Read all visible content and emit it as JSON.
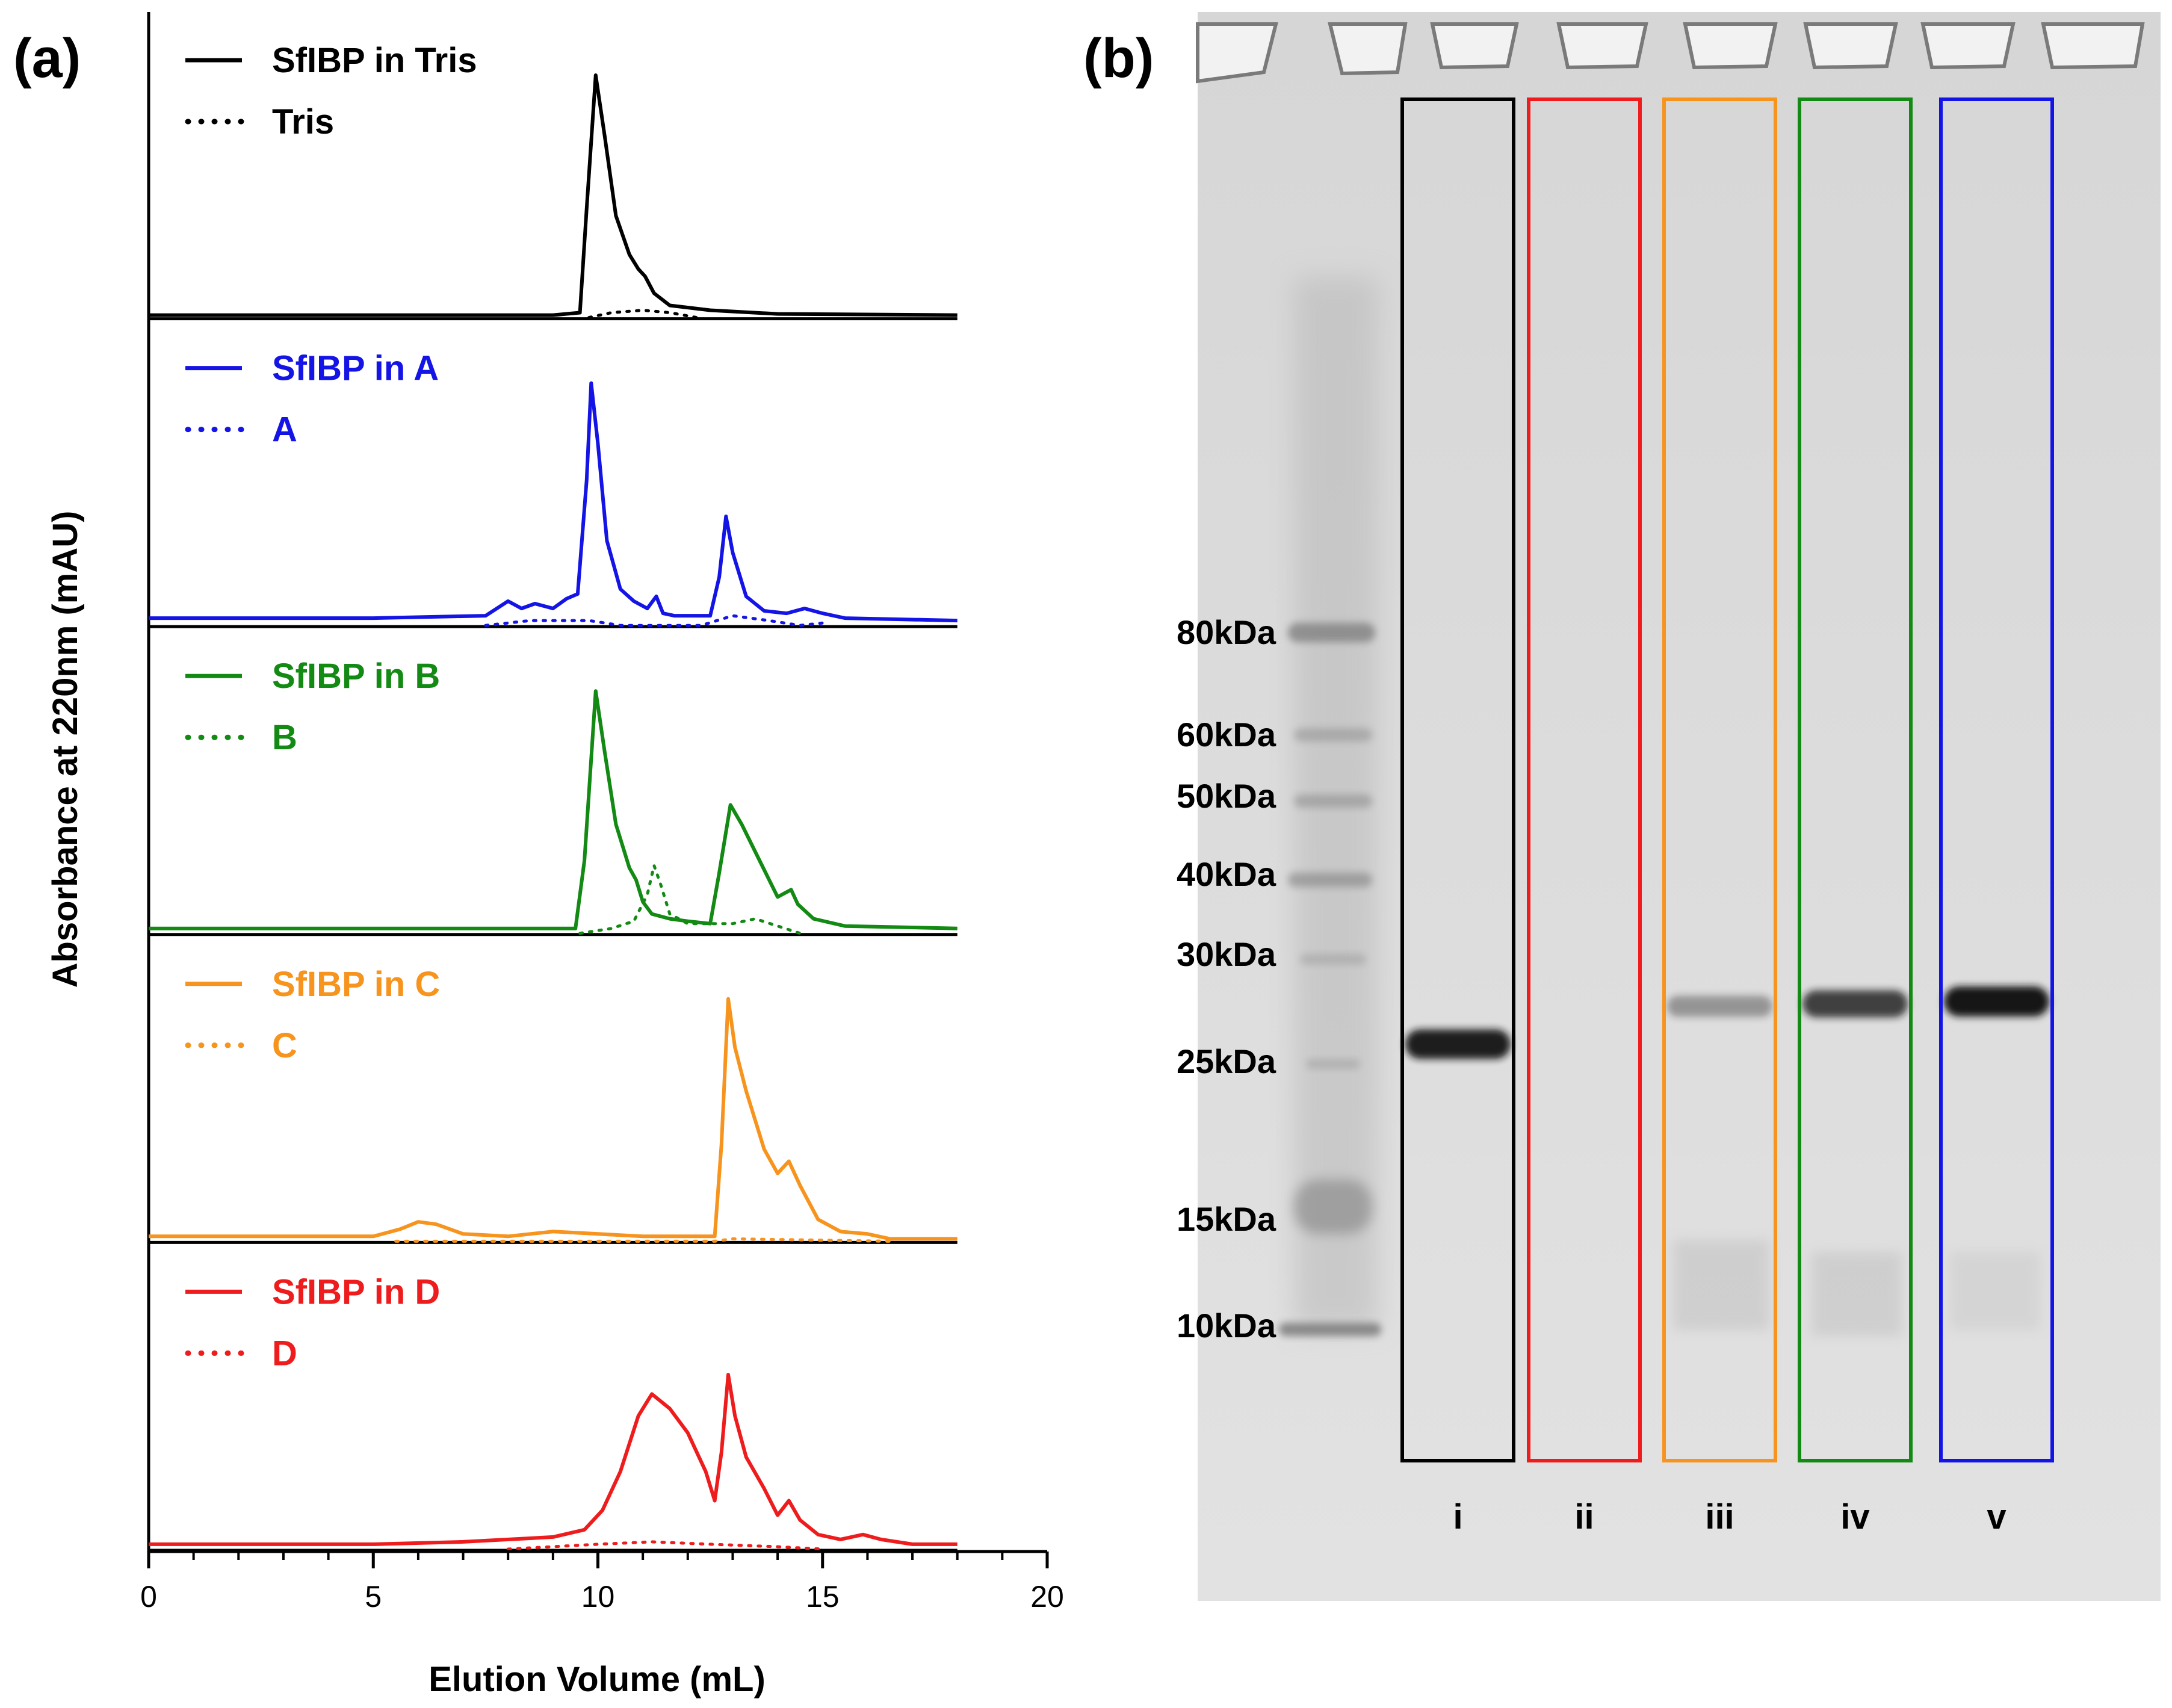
{
  "panels": {
    "a_label": "(a)",
    "b_label": "(b)"
  },
  "colors": {
    "tris": "#000000",
    "a": "#1414e6",
    "b": "#138a13",
    "c": "#f7941d",
    "d": "#ee1c1c",
    "gel_bg": "#dcdcdc"
  },
  "chart_data": {
    "type": "line",
    "xlabel": "Elution Volume (mL)",
    "ylabel": "Absorbance at 220nm (mAU)",
    "xlim": [
      0,
      20
    ],
    "xticks": [
      "0",
      "5",
      "10",
      "15",
      "20"
    ],
    "subplots": [
      {
        "key": "tris",
        "color": "#000000",
        "legend": [
          "SfIBP in Tris",
          "Tris"
        ],
        "ymax": 1.0,
        "solid": [
          [
            0,
            0.01
          ],
          [
            9.0,
            0.01
          ],
          [
            9.6,
            0.02
          ],
          [
            9.75,
            0.45
          ],
          [
            9.95,
            1.0
          ],
          [
            10.15,
            0.75
          ],
          [
            10.4,
            0.42
          ],
          [
            10.7,
            0.26
          ],
          [
            10.9,
            0.2
          ],
          [
            11.05,
            0.17
          ],
          [
            11.25,
            0.1
          ],
          [
            11.6,
            0.05
          ],
          [
            12.5,
            0.03
          ],
          [
            14,
            0.015
          ],
          [
            18,
            0.01
          ]
        ],
        "dotted": [
          [
            9.8,
            0.0
          ],
          [
            10.3,
            0.02
          ],
          [
            11.0,
            0.03
          ],
          [
            11.6,
            0.02
          ],
          [
            12.2,
            0.0
          ]
        ]
      },
      {
        "key": "a",
        "color": "#1414e6",
        "legend": [
          "SfIBP in A",
          "A"
        ],
        "ymax": 1.0,
        "solid": [
          [
            0,
            0.03
          ],
          [
            5,
            0.03
          ],
          [
            7.5,
            0.04
          ],
          [
            8.0,
            0.1
          ],
          [
            8.3,
            0.07
          ],
          [
            8.6,
            0.09
          ],
          [
            9.0,
            0.07
          ],
          [
            9.3,
            0.11
          ],
          [
            9.55,
            0.13
          ],
          [
            9.75,
            0.6
          ],
          [
            9.85,
            1.0
          ],
          [
            10.0,
            0.75
          ],
          [
            10.2,
            0.35
          ],
          [
            10.5,
            0.15
          ],
          [
            10.8,
            0.1
          ],
          [
            11.1,
            0.07
          ],
          [
            11.3,
            0.12
          ],
          [
            11.45,
            0.05
          ],
          [
            11.7,
            0.04
          ],
          [
            12.5,
            0.04
          ],
          [
            12.7,
            0.2
          ],
          [
            12.85,
            0.45
          ],
          [
            13.0,
            0.3
          ],
          [
            13.3,
            0.12
          ],
          [
            13.7,
            0.06
          ],
          [
            14.2,
            0.05
          ],
          [
            14.6,
            0.07
          ],
          [
            15.0,
            0.05
          ],
          [
            15.5,
            0.03
          ],
          [
            18,
            0.02
          ]
        ],
        "dotted": [
          [
            7.5,
            0.0
          ],
          [
            8.5,
            0.02
          ],
          [
            9.8,
            0.02
          ],
          [
            10.5,
            0.0
          ],
          [
            11.2,
            0.0
          ],
          [
            12.3,
            0.0
          ],
          [
            13.0,
            0.04
          ],
          [
            13.8,
            0.02
          ],
          [
            14.5,
            0.0
          ],
          [
            15.0,
            0.01
          ]
        ]
      },
      {
        "key": "b",
        "color": "#138a13",
        "legend": [
          "SfIBP in B",
          "B"
        ],
        "ymax": 1.0,
        "solid": [
          [
            0,
            0.02
          ],
          [
            2.5,
            0.02
          ],
          [
            9.5,
            0.02
          ],
          [
            9.7,
            0.3
          ],
          [
            9.95,
            1.0
          ],
          [
            10.15,
            0.75
          ],
          [
            10.4,
            0.45
          ],
          [
            10.7,
            0.27
          ],
          [
            10.85,
            0.22
          ],
          [
            11.0,
            0.13
          ],
          [
            11.2,
            0.08
          ],
          [
            11.6,
            0.06
          ],
          [
            12.0,
            0.05
          ],
          [
            12.5,
            0.04
          ],
          [
            12.7,
            0.25
          ],
          [
            12.95,
            0.53
          ],
          [
            13.2,
            0.45
          ],
          [
            13.6,
            0.3
          ],
          [
            14.0,
            0.15
          ],
          [
            14.3,
            0.18
          ],
          [
            14.45,
            0.12
          ],
          [
            14.8,
            0.06
          ],
          [
            15.5,
            0.03
          ],
          [
            18,
            0.02
          ]
        ],
        "dotted": [
          [
            9.6,
            0.0
          ],
          [
            10.3,
            0.02
          ],
          [
            10.8,
            0.05
          ],
          [
            11.1,
            0.16
          ],
          [
            11.25,
            0.28
          ],
          [
            11.4,
            0.2
          ],
          [
            11.6,
            0.08
          ],
          [
            12.0,
            0.04
          ],
          [
            13.0,
            0.04
          ],
          [
            13.5,
            0.06
          ],
          [
            14.0,
            0.03
          ],
          [
            14.5,
            0.0
          ]
        ]
      },
      {
        "key": "c",
        "color": "#f7941d",
        "legend": [
          "SfIBP in C",
          "C"
        ],
        "ymax": 1.0,
        "solid": [
          [
            0,
            0.02
          ],
          [
            5,
            0.02
          ],
          [
            5.6,
            0.05
          ],
          [
            6.0,
            0.08
          ],
          [
            6.4,
            0.07
          ],
          [
            7.0,
            0.03
          ],
          [
            8.0,
            0.02
          ],
          [
            9.0,
            0.04
          ],
          [
            10.0,
            0.03
          ],
          [
            11.0,
            0.02
          ],
          [
            12.6,
            0.02
          ],
          [
            12.75,
            0.4
          ],
          [
            12.9,
            1.0
          ],
          [
            13.05,
            0.8
          ],
          [
            13.3,
            0.62
          ],
          [
            13.7,
            0.38
          ],
          [
            14.0,
            0.28
          ],
          [
            14.25,
            0.33
          ],
          [
            14.5,
            0.23
          ],
          [
            14.9,
            0.09
          ],
          [
            15.4,
            0.04
          ],
          [
            16.0,
            0.03
          ],
          [
            16.5,
            0.01
          ],
          [
            18,
            0.01
          ]
        ],
        "dotted": [
          [
            5.5,
            0.0
          ],
          [
            8,
            0.0
          ],
          [
            12.6,
            0.0
          ],
          [
            13,
            0.01
          ],
          [
            16.5,
            0.0
          ]
        ]
      },
      {
        "key": "d",
        "color": "#ee1c1c",
        "legend": [
          "SfIBP in D",
          "D"
        ],
        "ymax": 1.0,
        "solid": [
          [
            0,
            0.02
          ],
          [
            5,
            0.02
          ],
          [
            7,
            0.03
          ],
          [
            9.0,
            0.05
          ],
          [
            9.7,
            0.08
          ],
          [
            10.1,
            0.16
          ],
          [
            10.5,
            0.32
          ],
          [
            10.9,
            0.55
          ],
          [
            11.2,
            0.64
          ],
          [
            11.6,
            0.58
          ],
          [
            12.0,
            0.48
          ],
          [
            12.4,
            0.32
          ],
          [
            12.6,
            0.2
          ],
          [
            12.75,
            0.4
          ],
          [
            12.9,
            0.72
          ],
          [
            13.05,
            0.55
          ],
          [
            13.3,
            0.38
          ],
          [
            13.7,
            0.25
          ],
          [
            14.0,
            0.14
          ],
          [
            14.25,
            0.2
          ],
          [
            14.5,
            0.12
          ],
          [
            14.9,
            0.06
          ],
          [
            15.4,
            0.04
          ],
          [
            15.9,
            0.06
          ],
          [
            16.3,
            0.04
          ],
          [
            17,
            0.02
          ],
          [
            18,
            0.02
          ]
        ],
        "dotted": [
          [
            8,
            0.0
          ],
          [
            10,
            0.02
          ],
          [
            11.2,
            0.03
          ],
          [
            12.5,
            0.02
          ],
          [
            14,
            0.01
          ],
          [
            15,
            0.0
          ]
        ]
      }
    ]
  },
  "gel": {
    "markers": [
      "80kDa",
      "60kDa",
      "50kDa",
      "40kDa",
      "30kDa",
      "25kDa",
      "15kDa",
      "10kDa"
    ],
    "lanes": [
      {
        "label": "i",
        "color": "#000000",
        "band": 0.95
      },
      {
        "label": "ii",
        "color": "#ee1c1c",
        "band": 0.0
      },
      {
        "label": "iii",
        "color": "#f7941d",
        "band": 0.25
      },
      {
        "label": "iv",
        "color": "#138a13",
        "band": 0.75
      },
      {
        "label": "v",
        "color": "#1414e6",
        "band": 1.0
      }
    ]
  }
}
